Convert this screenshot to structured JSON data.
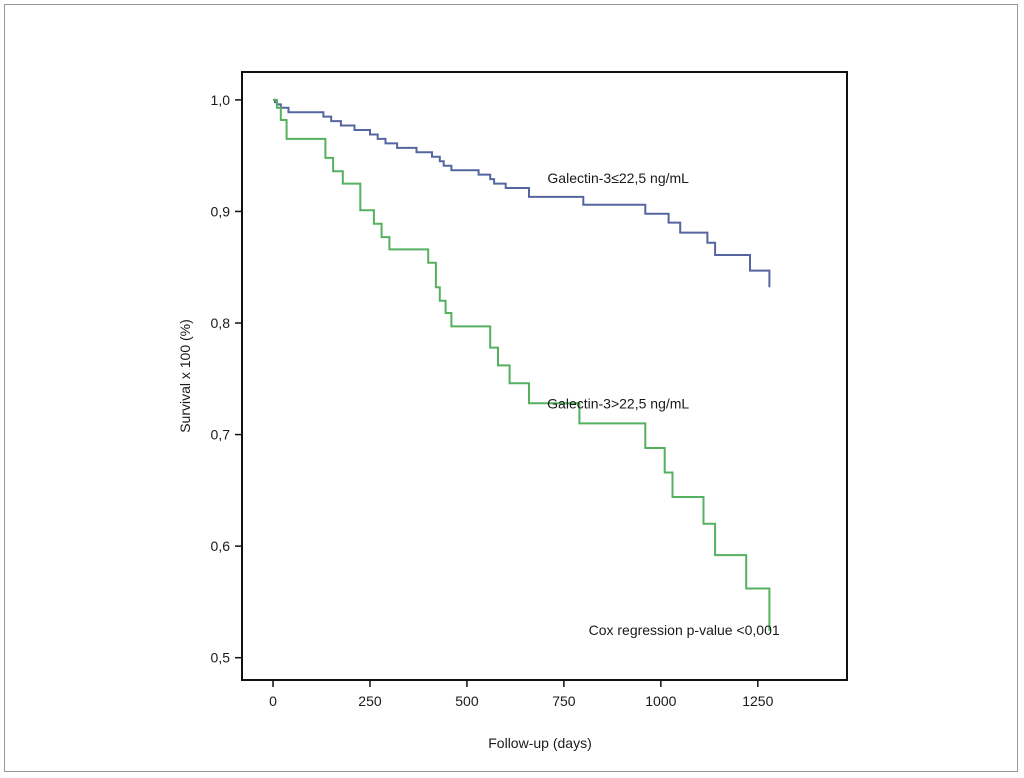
{
  "chart_data": {
    "type": "line",
    "subtype": "kaplan-meier step",
    "xlabel": "Follow-up (days)",
    "ylabel": "Survival x 100 (%)",
    "xlim": [
      -80,
      1480
    ],
    "ylim": [
      0.48,
      1.025
    ],
    "x_ticks": [
      0,
      250,
      500,
      750,
      1000,
      1250
    ],
    "x_tick_labels": [
      "0",
      "250",
      "500",
      "750",
      "1000",
      "1250"
    ],
    "y_ticks": [
      0.5,
      0.6,
      0.7,
      0.8,
      0.9,
      1.0
    ],
    "y_tick_labels": [
      "0,5",
      "0,6",
      "0,7",
      "0,8",
      "0,9",
      "1,0"
    ],
    "grid": false,
    "series": [
      {
        "name": "Galectin-3≤22,5 ng/mL",
        "color": "#5565a0",
        "x": [
          0,
          5,
          10,
          20,
          40,
          130,
          150,
          175,
          210,
          250,
          270,
          290,
          320,
          370,
          410,
          430,
          440,
          460,
          530,
          560,
          570,
          600,
          660,
          800,
          960,
          1020,
          1050,
          1120,
          1140,
          1230,
          1280,
          1280
        ],
        "y": [
          1.0,
          0.998,
          0.996,
          0.993,
          0.989,
          0.985,
          0.981,
          0.977,
          0.973,
          0.969,
          0.965,
          0.961,
          0.957,
          0.953,
          0.949,
          0.945,
          0.941,
          0.937,
          0.933,
          0.929,
          0.925,
          0.921,
          0.913,
          0.906,
          0.898,
          0.89,
          0.881,
          0.872,
          0.861,
          0.847,
          0.832,
          0.832
        ]
      },
      {
        "name": "Galectin-3>22,5 ng/mL",
        "color": "#55b060",
        "x": [
          0,
          10,
          20,
          35,
          135,
          155,
          180,
          225,
          260,
          280,
          300,
          400,
          420,
          430,
          445,
          460,
          560,
          580,
          610,
          660,
          790,
          960,
          1010,
          1030,
          1110,
          1140,
          1220,
          1280,
          1280
        ],
        "y": [
          1.0,
          0.993,
          0.982,
          0.965,
          0.948,
          0.936,
          0.925,
          0.901,
          0.889,
          0.877,
          0.866,
          0.854,
          0.832,
          0.82,
          0.809,
          0.797,
          0.778,
          0.762,
          0.746,
          0.728,
          0.71,
          0.688,
          0.666,
          0.644,
          0.62,
          0.592,
          0.562,
          0.524,
          0.524
        ]
      }
    ],
    "annotations": [
      {
        "text": "Galectin-3≤22,5 ng/mL",
        "x": 890,
        "y": 0.93
      },
      {
        "text": "Galectin-3>22,5 ng/mL",
        "x": 890,
        "y": 0.728
      },
      {
        "text": "Cox regression p-value <0,001",
        "x": 1060,
        "y": 0.525
      }
    ]
  }
}
